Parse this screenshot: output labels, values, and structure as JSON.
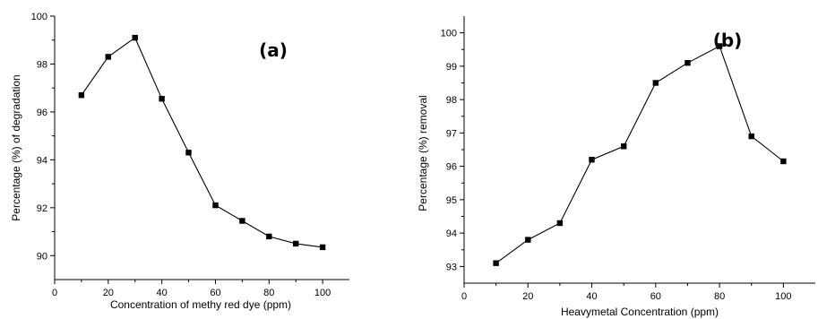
{
  "chart_data": [
    {
      "type": "line",
      "panel_label": "(a)",
      "xlabel": "Concentration of methy red dye (ppm)",
      "ylabel": "Percentage (%) of degradation",
      "xlim": [
        0,
        110
      ],
      "ylim": [
        89,
        100
      ],
      "xticks": [
        0,
        20,
        40,
        60,
        80,
        100
      ],
      "yticks": [
        90,
        92,
        94,
        96,
        98,
        100
      ],
      "grid": false,
      "series": [
        {
          "x": [
            10,
            20,
            30,
            40,
            50,
            60,
            70,
            80,
            90,
            100
          ],
          "y": [
            96.7,
            98.3,
            99.1,
            96.55,
            94.3,
            92.1,
            91.45,
            90.8,
            90.5,
            90.35
          ]
        }
      ]
    },
    {
      "type": "line",
      "panel_label": "(b)",
      "xlabel": "Heavymetal Concentration (ppm)",
      "ylabel": "Percentage (%) removal",
      "xlim": [
        0,
        110
      ],
      "ylim": [
        92.5,
        100.5
      ],
      "xticks": [
        0,
        20,
        40,
        60,
        80,
        100
      ],
      "yticks": [
        93,
        94,
        95,
        96,
        97,
        98,
        99,
        100
      ],
      "grid": false,
      "series": [
        {
          "x": [
            10,
            20,
            30,
            40,
            50,
            60,
            70,
            80,
            90,
            100
          ],
          "y": [
            93.1,
            93.8,
            94.3,
            96.2,
            96.6,
            98.5,
            99.1,
            99.6,
            96.9,
            96.15
          ]
        }
      ]
    }
  ]
}
